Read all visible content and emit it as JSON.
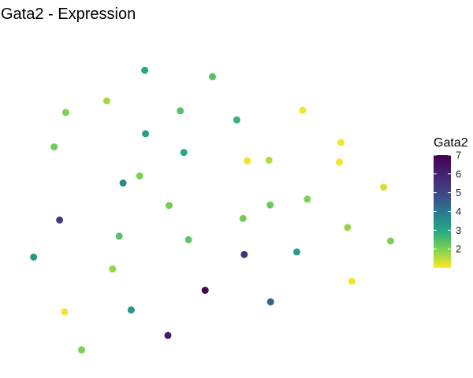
{
  "chart_data": {
    "type": "scatter",
    "title": "Gata2 - Expression",
    "xlabel": "",
    "ylabel": "",
    "grid": false,
    "axes_visible": false,
    "color_variable": "Gata2",
    "color_scale": "viridis",
    "color_range": [
      1,
      7
    ],
    "legend": {
      "title": "Gata2",
      "ticks": [
        2,
        3,
        4,
        5,
        6,
        7
      ],
      "position": "right"
    },
    "xlim": [
      0,
      100
    ],
    "ylim": [
      0,
      100
    ],
    "points": [
      {
        "x": 32.5,
        "y": 90.4,
        "value": 3.0
      },
      {
        "x": 50.0,
        "y": 88.4,
        "value": 2.4
      },
      {
        "x": 22.7,
        "y": 80.9,
        "value": 1.7
      },
      {
        "x": 12.1,
        "y": 77.3,
        "value": 2.0
      },
      {
        "x": 41.7,
        "y": 77.8,
        "value": 2.4
      },
      {
        "x": 73.3,
        "y": 78.0,
        "value": 1.1
      },
      {
        "x": 56.3,
        "y": 75.0,
        "value": 2.8
      },
      {
        "x": 32.7,
        "y": 70.7,
        "value": 3.1
      },
      {
        "x": 83.2,
        "y": 68.0,
        "value": 1.1
      },
      {
        "x": 9.1,
        "y": 66.6,
        "value": 2.1
      },
      {
        "x": 42.6,
        "y": 64.9,
        "value": 3.0
      },
      {
        "x": 59.0,
        "y": 62.3,
        "value": 1.1
      },
      {
        "x": 64.6,
        "y": 62.5,
        "value": 1.6
      },
      {
        "x": 82.8,
        "y": 61.9,
        "value": 1.1
      },
      {
        "x": 31.2,
        "y": 57.6,
        "value": 2.0
      },
      {
        "x": 26.9,
        "y": 55.4,
        "value": 3.6
      },
      {
        "x": 94.2,
        "y": 54.1,
        "value": 1.3
      },
      {
        "x": 74.5,
        "y": 50.4,
        "value": 2.0
      },
      {
        "x": 38.8,
        "y": 48.4,
        "value": 2.1
      },
      {
        "x": 64.9,
        "y": 48.6,
        "value": 2.2
      },
      {
        "x": 10.5,
        "y": 43.9,
        "value": 5.2
      },
      {
        "x": 57.9,
        "y": 44.4,
        "value": 2.1
      },
      {
        "x": 84.9,
        "y": 41.6,
        "value": 1.8
      },
      {
        "x": 25.9,
        "y": 38.9,
        "value": 2.4
      },
      {
        "x": 43.8,
        "y": 37.8,
        "value": 2.3
      },
      {
        "x": 96.0,
        "y": 37.4,
        "value": 2.0
      },
      {
        "x": 71.8,
        "y": 34.0,
        "value": 3.2
      },
      {
        "x": 58.2,
        "y": 33.2,
        "value": 5.5
      },
      {
        "x": 3.8,
        "y": 32.4,
        "value": 3.3
      },
      {
        "x": 24.2,
        "y": 28.7,
        "value": 1.8
      },
      {
        "x": 86.0,
        "y": 24.9,
        "value": 1.1
      },
      {
        "x": 48.1,
        "y": 22.1,
        "value": 7.0
      },
      {
        "x": 65.0,
        "y": 18.5,
        "value": 4.3
      },
      {
        "x": 11.8,
        "y": 15.4,
        "value": 1.1
      },
      {
        "x": 29.0,
        "y": 16.0,
        "value": 3.3
      },
      {
        "x": 38.5,
        "y": 8.1,
        "value": 6.2
      },
      {
        "x": 16.2,
        "y": 3.6,
        "value": 2.0
      }
    ]
  }
}
